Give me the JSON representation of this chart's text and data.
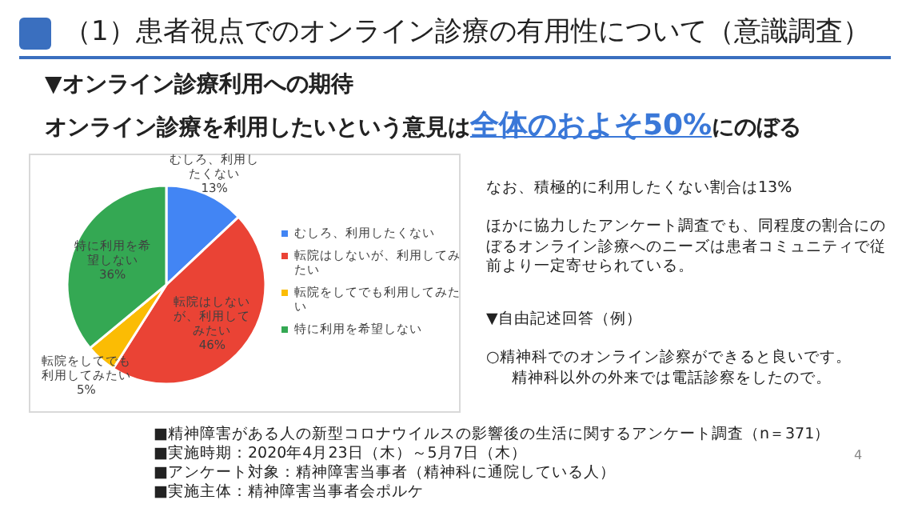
{
  "chart_data": {
    "type": "pie",
    "title": "（1）患者視点でのオンライン診療の有用性について（意識調査）",
    "subtitle": "▼オンライン診療利用への期待",
    "categories": [
      "むしろ、利用したくない",
      "転院はしないが、利用してみたい",
      "転院をしてでも利用してみたい",
      "特に利用を希望しない"
    ],
    "values": [
      13,
      46,
      5,
      36
    ],
    "value_labels": [
      "13%",
      "46%",
      "5%",
      "36%"
    ],
    "colors": [
      "#4285f4",
      "#ea4335",
      "#fbbc04",
      "#34a853"
    ],
    "legend": "right",
    "annotations": [
      "オンライン診療を利用したいという意見は",
      "全体のおよそ50%",
      "にのぼる",
      "なお、積極的に利用したくない割合は13%",
      "ほかに協力したアンケート調査でも、同程度の割合にのぼるオンライン診療へのニーズは患者コミュニティで従前より一定寄せられている。",
      "▼自由記述回答（例）",
      "○精神科でのオンライン診察ができると良いです。",
      "精神科以外の外来では電話診察をしたので。",
      "■精神障害がある人の新型コロナウイルスの影響後の生活に関するアンケート調査（n＝371）",
      "■実施時期：2020年4月23日（木）～5月7日（木）",
      "■アンケート対象：精神障害当事者（精神科に通院している人）",
      "■実施主体：精神障害当事者会ポルケ",
      "4"
    ]
  }
}
